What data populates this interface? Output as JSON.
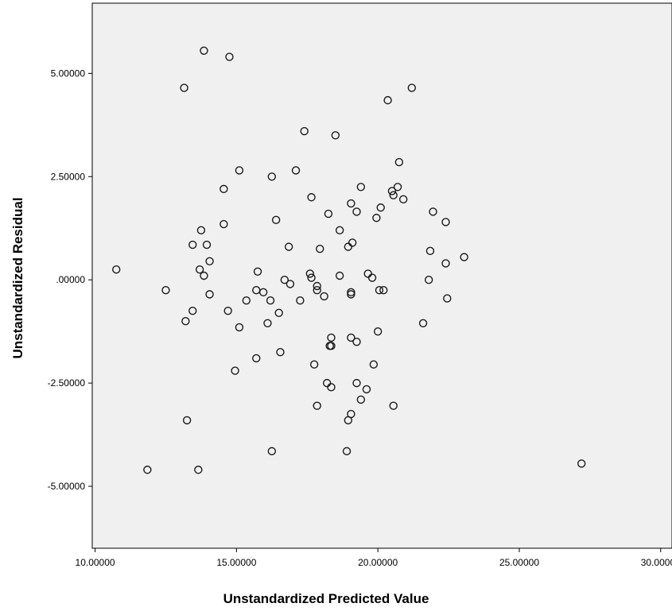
{
  "chart_data": {
    "type": "scatter",
    "title": "",
    "xlabel": "Unstandardized Predicted Value",
    "ylabel": "Unstandardized Residual",
    "xlim": [
      9.9,
      30.4
    ],
    "ylim": [
      -6.5,
      6.7
    ],
    "x_ticks": [
      10,
      15,
      20,
      25,
      30
    ],
    "y_ticks": [
      5,
      2.5,
      0,
      -2.5,
      -5
    ],
    "x_tick_labels": [
      "10.00000",
      "15.00000",
      "20.00000",
      "25.00000",
      "30.00000"
    ],
    "y_tick_labels": [
      "5.00000",
      "2.50000",
      ".00000",
      "-2.50000",
      "-5.00000"
    ],
    "grid": false,
    "colors": {
      "plot_background": "#f0f0f0",
      "marker_stroke": "#1a1a1a",
      "frame": "#000000"
    },
    "points": [
      {
        "x": 13.85,
        "y": 5.55
      },
      {
        "x": 14.75,
        "y": 5.4
      },
      {
        "x": 13.15,
        "y": 4.65
      },
      {
        "x": 21.2,
        "y": 4.65
      },
      {
        "x": 20.35,
        "y": 4.35
      },
      {
        "x": 17.4,
        "y": 3.6
      },
      {
        "x": 18.5,
        "y": 3.5
      },
      {
        "x": 20.75,
        "y": 2.85
      },
      {
        "x": 15.1,
        "y": 2.65
      },
      {
        "x": 17.1,
        "y": 2.65
      },
      {
        "x": 16.25,
        "y": 2.5
      },
      {
        "x": 19.4,
        "y": 2.25
      },
      {
        "x": 20.7,
        "y": 2.25
      },
      {
        "x": 14.55,
        "y": 2.2
      },
      {
        "x": 20.5,
        "y": 2.15
      },
      {
        "x": 20.55,
        "y": 2.05
      },
      {
        "x": 17.65,
        "y": 2.0
      },
      {
        "x": 20.9,
        "y": 1.95
      },
      {
        "x": 19.05,
        "y": 1.85
      },
      {
        "x": 20.1,
        "y": 1.75
      },
      {
        "x": 19.25,
        "y": 1.65
      },
      {
        "x": 21.95,
        "y": 1.65
      },
      {
        "x": 18.25,
        "y": 1.6
      },
      {
        "x": 19.95,
        "y": 1.5
      },
      {
        "x": 16.4,
        "y": 1.45
      },
      {
        "x": 22.4,
        "y": 1.4
      },
      {
        "x": 14.55,
        "y": 1.35
      },
      {
        "x": 13.75,
        "y": 1.2
      },
      {
        "x": 18.65,
        "y": 1.2
      },
      {
        "x": 19.1,
        "y": 0.9
      },
      {
        "x": 13.45,
        "y": 0.85
      },
      {
        "x": 13.95,
        "y": 0.85
      },
      {
        "x": 16.85,
        "y": 0.8
      },
      {
        "x": 18.95,
        "y": 0.8
      },
      {
        "x": 17.95,
        "y": 0.75
      },
      {
        "x": 21.85,
        "y": 0.7
      },
      {
        "x": 23.05,
        "y": 0.55
      },
      {
        "x": 14.05,
        "y": 0.45
      },
      {
        "x": 22.4,
        "y": 0.4
      },
      {
        "x": 10.75,
        "y": 0.25
      },
      {
        "x": 13.7,
        "y": 0.25
      },
      {
        "x": 15.75,
        "y": 0.2
      },
      {
        "x": 17.6,
        "y": 0.15
      },
      {
        "x": 19.65,
        "y": 0.15
      },
      {
        "x": 13.85,
        "y": 0.1
      },
      {
        "x": 17.65,
        "y": 0.05
      },
      {
        "x": 18.65,
        "y": 0.1
      },
      {
        "x": 19.8,
        "y": 0.05
      },
      {
        "x": 16.7,
        "y": 0.0
      },
      {
        "x": 21.8,
        "y": 0.0
      },
      {
        "x": 16.9,
        "y": -0.1
      },
      {
        "x": 17.85,
        "y": -0.15
      },
      {
        "x": 17.85,
        "y": -0.25
      },
      {
        "x": 15.7,
        "y": -0.25
      },
      {
        "x": 12.5,
        "y": -0.25
      },
      {
        "x": 20.05,
        "y": -0.25
      },
      {
        "x": 20.2,
        "y": -0.25
      },
      {
        "x": 15.95,
        "y": -0.3
      },
      {
        "x": 19.05,
        "y": -0.3
      },
      {
        "x": 19.05,
        "y": -0.35
      },
      {
        "x": 14.05,
        "y": -0.35
      },
      {
        "x": 18.1,
        "y": -0.4
      },
      {
        "x": 22.45,
        "y": -0.45
      },
      {
        "x": 15.35,
        "y": -0.5
      },
      {
        "x": 16.2,
        "y": -0.5
      },
      {
        "x": 17.25,
        "y": -0.5
      },
      {
        "x": 13.45,
        "y": -0.75
      },
      {
        "x": 14.7,
        "y": -0.75
      },
      {
        "x": 16.5,
        "y": -0.8
      },
      {
        "x": 13.2,
        "y": -1.0
      },
      {
        "x": 16.1,
        "y": -1.05
      },
      {
        "x": 21.6,
        "y": -1.05
      },
      {
        "x": 15.1,
        "y": -1.15
      },
      {
        "x": 20.0,
        "y": -1.25
      },
      {
        "x": 18.35,
        "y": -1.4
      },
      {
        "x": 19.05,
        "y": -1.4
      },
      {
        "x": 19.25,
        "y": -1.5
      },
      {
        "x": 18.35,
        "y": -1.6
      },
      {
        "x": 18.3,
        "y": -1.6
      },
      {
        "x": 16.55,
        "y": -1.75
      },
      {
        "x": 15.7,
        "y": -1.9
      },
      {
        "x": 17.75,
        "y": -2.05
      },
      {
        "x": 19.85,
        "y": -2.05
      },
      {
        "x": 14.95,
        "y": -2.2
      },
      {
        "x": 18.2,
        "y": -2.5
      },
      {
        "x": 19.25,
        "y": -2.5
      },
      {
        "x": 18.35,
        "y": -2.6
      },
      {
        "x": 19.6,
        "y": -2.65
      },
      {
        "x": 19.4,
        "y": -2.9
      },
      {
        "x": 17.85,
        "y": -3.05
      },
      {
        "x": 20.55,
        "y": -3.05
      },
      {
        "x": 19.05,
        "y": -3.25
      },
      {
        "x": 13.25,
        "y": -3.4
      },
      {
        "x": 18.95,
        "y": -3.4
      },
      {
        "x": 16.25,
        "y": -4.15
      },
      {
        "x": 18.9,
        "y": -4.15
      },
      {
        "x": 27.2,
        "y": -4.45
      },
      {
        "x": 11.85,
        "y": -4.6
      },
      {
        "x": 13.65,
        "y": -4.6
      }
    ]
  }
}
